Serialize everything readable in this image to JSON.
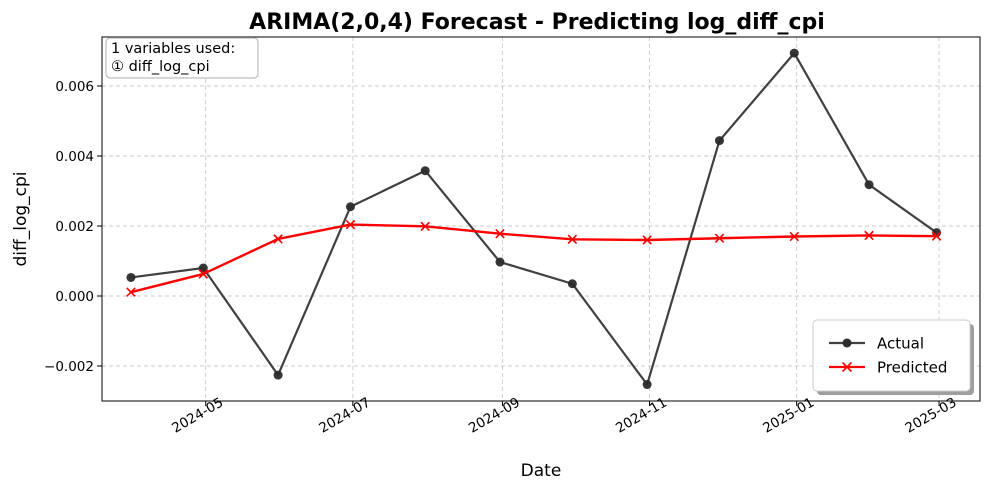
{
  "chart_data": {
    "type": "line",
    "title": "ARIMA(2,0,4) Forecast - Predicting log_diff_cpi",
    "xlabel": "Date",
    "ylabel": "diff_log_cpi",
    "x": [
      "2024-03-31",
      "2024-04-30",
      "2024-05-31",
      "2024-06-30",
      "2024-07-31",
      "2024-08-31",
      "2024-09-30",
      "2024-10-31",
      "2024-11-30",
      "2024-12-31",
      "2025-01-31",
      "2025-02-28"
    ],
    "x_ticks": [
      "2024-05",
      "2024-07",
      "2024-09",
      "2024-11",
      "2025-01",
      "2025-03"
    ],
    "xlim": [
      "2024-03-19",
      "2025-03-18"
    ],
    "ylim": [
      -0.003,
      0.0074
    ],
    "y_ticks": [
      -0.002,
      0.0,
      0.002,
      0.004,
      0.006
    ],
    "y_tick_labels": [
      "−0.002",
      "0.000",
      "0.002",
      "0.004",
      "0.006"
    ],
    "grid": true,
    "legend_position": "bottom-right",
    "series": [
      {
        "name": "Actual",
        "color": "#404040",
        "marker": "circle",
        "values": [
          0.00053,
          0.0008,
          -0.00226,
          0.00255,
          0.00358,
          0.00097,
          0.00035,
          -0.00253,
          0.00444,
          0.00694,
          0.00318,
          0.00181
        ]
      },
      {
        "name": "Predicted",
        "color": "#ff0000",
        "marker": "x",
        "values": [
          0.00011,
          0.00063,
          0.00163,
          0.00204,
          0.00199,
          0.00178,
          0.00162,
          0.0016,
          0.00165,
          0.0017,
          0.00173,
          0.00171
        ]
      }
    ],
    "annotation": {
      "lines": [
        "1 variables used:",
        "① diff_log_cpi"
      ]
    }
  }
}
